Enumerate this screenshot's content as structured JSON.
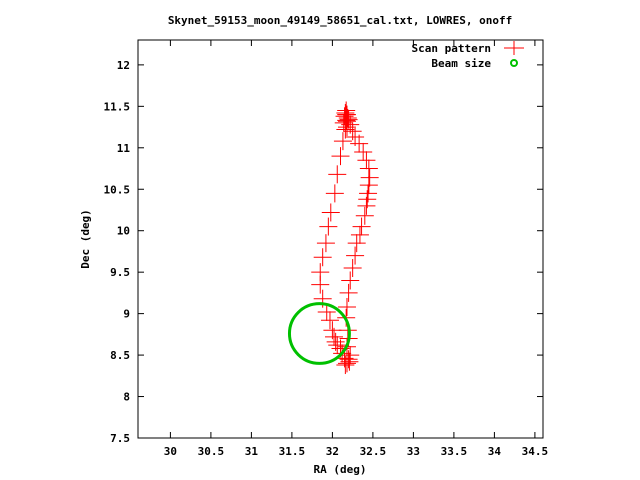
{
  "chart_data": {
    "type": "scatter",
    "title": "Skynet_59153_moon_49149_58651_cal.txt, LOWRES, onoff",
    "xlabel": "RA (deg)",
    "ylabel": "Dec (deg)",
    "xlim": [
      29.6,
      34.6
    ],
    "ylim": [
      7.5,
      12.3
    ],
    "x_ticks": [
      30,
      30.5,
      31,
      31.5,
      32,
      32.5,
      33,
      33.5,
      34,
      34.5
    ],
    "x_tick_labels": [
      "30",
      "30.5",
      "31",
      "31.5",
      "32",
      "32.5",
      "33",
      "33.5",
      "34",
      "34.5"
    ],
    "y_ticks": [
      7.5,
      8,
      8.5,
      9,
      9.5,
      10,
      10.5,
      11,
      11.5,
      12
    ],
    "y_tick_labels": [
      "7.5",
      "8",
      "8.5",
      "9",
      "9.5",
      "10",
      "10.5",
      "11",
      "11.5",
      "12"
    ],
    "grid": false,
    "legend_position": "top-right",
    "series": [
      {
        "name": "Scan pattern",
        "marker": "plus",
        "color": "#ff0000",
        "points": [
          [
            32.17,
            11.45
          ],
          [
            32.16,
            11.42
          ],
          [
            32.18,
            11.4
          ],
          [
            32.15,
            11.38
          ],
          [
            32.19,
            11.36
          ],
          [
            32.17,
            11.33
          ],
          [
            32.14,
            11.3
          ],
          [
            32.2,
            11.34
          ],
          [
            32.22,
            11.28
          ],
          [
            32.18,
            11.25
          ],
          [
            32.25,
            11.2
          ],
          [
            32.28,
            11.13
          ],
          [
            32.33,
            11.05
          ],
          [
            32.38,
            10.95
          ],
          [
            32.42,
            10.85
          ],
          [
            32.45,
            10.75
          ],
          [
            32.46,
            10.64
          ],
          [
            32.45,
            10.55
          ],
          [
            32.44,
            10.45
          ],
          [
            32.43,
            10.38
          ],
          [
            32.42,
            10.3
          ],
          [
            32.4,
            10.18
          ],
          [
            32.36,
            10.05
          ],
          [
            32.34,
            9.95
          ],
          [
            32.3,
            9.85
          ],
          [
            32.28,
            9.7
          ],
          [
            32.25,
            9.55
          ],
          [
            32.22,
            9.4
          ],
          [
            32.2,
            9.25
          ],
          [
            32.18,
            9.08
          ],
          [
            32.17,
            8.95
          ],
          [
            32.19,
            8.8
          ],
          [
            32.2,
            8.7
          ],
          [
            32.18,
            8.6
          ],
          [
            32.22,
            8.5
          ],
          [
            32.2,
            8.45
          ],
          [
            32.18,
            8.4
          ],
          [
            32.16,
            8.38
          ],
          [
            32.21,
            8.42
          ],
          [
            32.15,
            8.46
          ],
          [
            32.12,
            8.52
          ],
          [
            32.1,
            8.58
          ],
          [
            32.06,
            8.62
          ],
          [
            32.04,
            8.66
          ],
          [
            32.02,
            8.72
          ],
          [
            32.0,
            8.8
          ],
          [
            31.97,
            8.92
          ],
          [
            31.93,
            9.02
          ],
          [
            31.88,
            9.18
          ],
          [
            31.85,
            9.35
          ],
          [
            31.85,
            9.5
          ],
          [
            31.88,
            9.68
          ],
          [
            31.92,
            9.85
          ],
          [
            31.95,
            10.05
          ],
          [
            31.98,
            10.22
          ],
          [
            32.03,
            10.45
          ],
          [
            32.06,
            10.68
          ],
          [
            32.1,
            10.9
          ],
          [
            32.13,
            11.08
          ],
          [
            32.16,
            11.22
          ],
          [
            32.18,
            11.32
          ],
          [
            32.17,
            11.4
          ]
        ]
      },
      {
        "name": "Beam size",
        "marker": "circle",
        "color": "#00c000",
        "center": [
          31.84,
          8.76
        ],
        "radius_x_deg": 0.37,
        "radius_y_deg": 0.36
      }
    ]
  }
}
